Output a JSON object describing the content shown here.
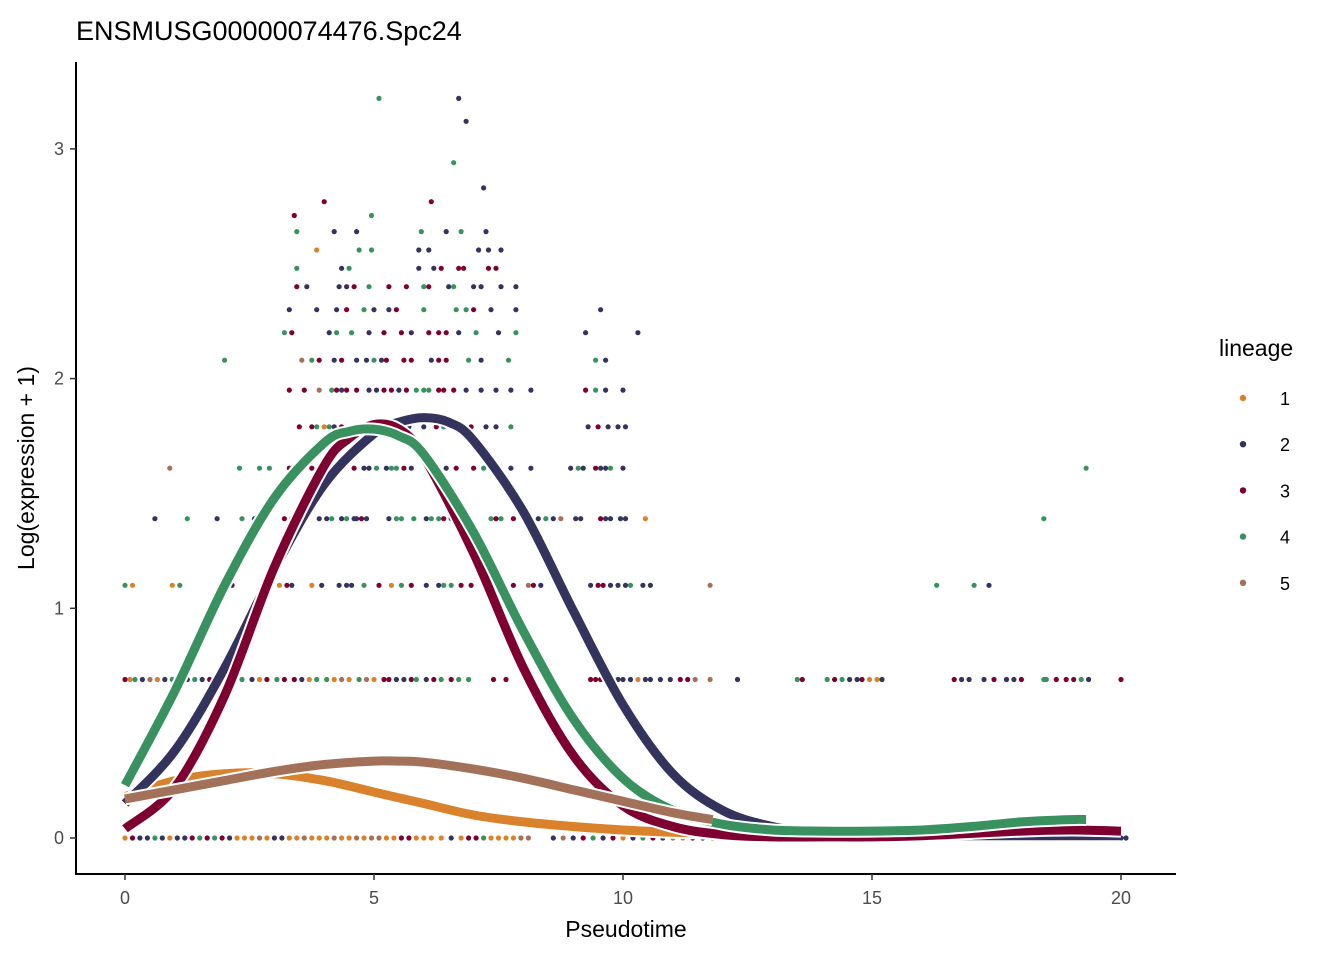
{
  "chart_data": {
    "type": "scatter",
    "title": "ENSMUSG00000074476.Spc24",
    "xlabel": "Pseudotime",
    "ylabel": "Log(expression + 1)",
    "xlim": [
      -1,
      21
    ],
    "ylim": [
      -0.16,
      3.35
    ],
    "xticks": [
      0,
      5,
      10,
      15,
      20
    ],
    "xtick_labels": [
      "0",
      "5",
      "10",
      "15",
      "20"
    ],
    "yticks": [
      0,
      1,
      2,
      3
    ],
    "ytick_labels": [
      "0",
      "1",
      "2",
      "3"
    ],
    "grid": false,
    "legend": {
      "title": "lineage",
      "placement": "right",
      "entries": [
        {
          "label": "1",
          "color": "#D9822B"
        },
        {
          "label": "2",
          "color": "#33335E"
        },
        {
          "label": "3",
          "color": "#7D0030"
        },
        {
          "label": "4",
          "color": "#3A9160"
        },
        {
          "label": "5",
          "color": "#A3715A"
        }
      ]
    },
    "points": [
      {
        "y": 3.22,
        "x": [
          5.1
        ],
        "lineage": [
          4
        ]
      },
      {
        "y": 3.22,
        "x": [
          6.7
        ],
        "lineage": [
          2
        ]
      },
      {
        "y": 3.12,
        "x": [
          6.85
        ],
        "lineage": [
          2
        ]
      },
      {
        "y": 2.94,
        "x": [
          6.6
        ],
        "lineage": [
          4
        ]
      },
      {
        "y": 2.83,
        "x": [
          7.2
        ],
        "lineage": [
          2
        ]
      },
      {
        "y": 2.77,
        "x": [
          4.0,
          6.15
        ],
        "lineage": [
          3,
          3
        ]
      },
      {
        "y": 2.71,
        "x": [
          3.4,
          4.95
        ],
        "lineage": [
          3,
          4
        ]
      },
      {
        "y": 2.64,
        "x": [
          3.45,
          4.2,
          4.65,
          5.95,
          6.45,
          6.75,
          7.25
        ],
        "lineage": [
          4,
          2,
          2,
          4,
          2,
          4,
          2
        ]
      },
      {
        "y": 2.56,
        "x": [
          3.85,
          4.7,
          4.95,
          5.9,
          6.1,
          7.1,
          7.3,
          7.55
        ],
        "lineage": [
          1,
          4,
          4,
          2,
          2,
          2,
          2,
          2
        ]
      },
      {
        "y": 2.48,
        "x": [
          3.45,
          4.35,
          4.5,
          5.9,
          6.2,
          6.35,
          6.7,
          6.8,
          7.3,
          7.45
        ],
        "lineage": [
          4,
          2,
          4,
          2,
          2,
          3,
          3,
          3,
          3,
          3
        ]
      },
      {
        "y": 2.4,
        "x": [
          3.45,
          3.65,
          4.3,
          4.45,
          4.6,
          4.9,
          5.3,
          5.65,
          6.0,
          6.1,
          6.5,
          6.6,
          7.0,
          7.15,
          7.55,
          7.85
        ],
        "lineage": [
          3,
          2,
          2,
          2,
          3,
          4,
          3,
          3,
          4,
          3,
          2,
          4,
          2,
          2,
          2,
          2
        ]
      },
      {
        "y": 2.3,
        "x": [
          3.3,
          3.85,
          4.25,
          4.45,
          4.8,
          5.0,
          5.3,
          5.45,
          6.0,
          6.65,
          6.85,
          7.0,
          7.35,
          7.85,
          9.55
        ],
        "lineage": [
          2,
          2,
          2,
          3,
          4,
          2,
          2,
          3,
          4,
          4,
          4,
          3,
          2,
          2,
          2
        ]
      },
      {
        "y": 2.2,
        "x": [
          3.2,
          3.35,
          4.1,
          4.25,
          4.55,
          4.9,
          5.2,
          5.55,
          5.75,
          6.1,
          6.3,
          6.45,
          6.7,
          7.05,
          7.5,
          7.85,
          9.25,
          10.3
        ],
        "lineage": [
          4,
          3,
          2,
          4,
          4,
          2,
          3,
          3,
          2,
          3,
          3,
          3,
          2,
          4,
          2,
          4,
          2,
          2
        ]
      },
      {
        "y": 2.08,
        "x": [
          2.0,
          3.55,
          3.75,
          3.9,
          4.2,
          4.35,
          4.65,
          4.85,
          5.0,
          5.15,
          5.25,
          5.6,
          5.75,
          6.15,
          6.3,
          6.45,
          6.9,
          7.15,
          7.7,
          9.45,
          9.65
        ],
        "lineage": [
          4,
          5,
          4,
          3,
          2,
          3,
          2,
          2,
          4,
          2,
          3,
          3,
          3,
          2,
          3,
          3,
          4,
          2,
          4,
          4,
          2
        ],
        "note": ""
      },
      {
        "y": 1.95,
        "x": [
          3.3,
          3.6,
          3.9,
          4.15,
          4.25,
          4.35,
          4.45,
          4.65,
          4.9,
          5.05,
          5.2,
          5.35,
          5.5,
          5.65,
          5.85,
          6.0,
          6.1,
          6.3,
          6.4,
          6.6,
          6.85,
          7.15,
          7.45,
          7.75,
          8.15,
          9.25,
          9.45,
          9.65,
          10.0
        ],
        "lineage": [
          3,
          3,
          5,
          4,
          3,
          2,
          3,
          3,
          2,
          2,
          3,
          3,
          2,
          3,
          4,
          4,
          4,
          3,
          3,
          3,
          2,
          2,
          2,
          2,
          2,
          3,
          4,
          2,
          2
        ]
      },
      {
        "y": 1.79,
        "x": [
          3.5,
          3.75,
          3.85,
          4.0,
          4.1,
          4.2,
          4.35,
          4.6,
          4.75,
          4.9,
          5.15,
          5.3,
          5.5,
          5.7,
          6.0,
          6.25,
          6.4,
          6.75,
          6.95,
          7.25,
          7.45,
          7.75,
          9.3,
          9.5,
          9.7,
          9.9,
          10.05
        ],
        "lineage": [
          3,
          3,
          4,
          1,
          4,
          2,
          3,
          3,
          3,
          2,
          2,
          3,
          4,
          2,
          2,
          3,
          4,
          4,
          3,
          2,
          2,
          4,
          2,
          3,
          2,
          2,
          2
        ]
      },
      {
        "y": 1.61,
        "x": [
          0.9,
          2.3,
          2.7,
          2.9,
          3.3,
          3.35,
          3.5,
          3.75,
          4.05,
          4.15,
          4.3,
          4.6,
          4.8,
          4.9,
          5.05,
          5.25,
          5.35,
          5.45,
          5.6,
          5.75,
          6.05,
          6.15,
          6.25,
          6.45,
          6.65,
          7.0,
          7.2,
          7.5,
          7.75,
          8.15,
          8.95,
          9.1,
          9.2,
          9.45,
          9.55,
          9.65,
          9.75,
          10.0,
          19.3
        ],
        "lineage": [
          5,
          4,
          4,
          4,
          3,
          4,
          4,
          3,
          2,
          3,
          3,
          3,
          2,
          2,
          4,
          2,
          4,
          4,
          3,
          2,
          4,
          2,
          2,
          2,
          3,
          3,
          4,
          2,
          2,
          2,
          2,
          4,
          2,
          3,
          2,
          2,
          4,
          2,
          4
        ]
      },
      {
        "y": 1.39,
        "x": [
          0.6,
          1.25,
          1.85,
          2.35,
          2.6,
          2.7,
          2.75,
          3.2,
          3.35,
          3.9,
          4.05,
          4.15,
          4.35,
          4.45,
          4.6,
          4.65,
          4.75,
          4.85,
          5.3,
          5.45,
          5.55,
          5.8,
          6.05,
          6.15,
          6.3,
          6.4,
          6.55,
          6.75,
          6.9,
          7.35,
          7.45,
          7.55,
          7.8,
          8.0,
          8.3,
          8.45,
          8.6,
          8.75,
          9.05,
          9.15,
          9.55,
          9.65,
          9.75,
          9.95,
          10.05,
          10.45,
          18.45
        ],
        "lineage": [
          2,
          4,
          2,
          4,
          2,
          4,
          2,
          3,
          4,
          2,
          2,
          4,
          2,
          4,
          2,
          2,
          3,
          2,
          2,
          4,
          4,
          4,
          2,
          4,
          4,
          3,
          2,
          2,
          2,
          4,
          3,
          4,
          3,
          2,
          2,
          4,
          2,
          5,
          2,
          2,
          3,
          2,
          2,
          2,
          2,
          1,
          4
        ]
      },
      {
        "y": 1.1,
        "x": [
          0.0,
          0.15,
          0.95,
          1.1,
          2.15,
          2.8,
          3.1,
          3.25,
          3.35,
          3.75,
          3.95,
          4.3,
          4.45,
          4.55,
          4.8,
          5.1,
          5.35,
          5.55,
          5.75,
          6.05,
          6.3,
          6.4,
          6.55,
          6.75,
          6.95,
          7.2,
          7.45,
          7.6,
          7.8,
          8.1,
          8.2,
          8.35,
          9.35,
          9.5,
          9.6,
          9.75,
          9.9,
          10.05,
          10.15,
          10.4,
          10.55,
          11.75,
          16.3,
          17.05,
          17.35
        ],
        "lineage": [
          4,
          1,
          1,
          4,
          2,
          2,
          1,
          3,
          2,
          1,
          2,
          2,
          2,
          2,
          4,
          3,
          1,
          4,
          3,
          2,
          2,
          4,
          4,
          3,
          3,
          4,
          4,
          3,
          3,
          5,
          3,
          2,
          2,
          3,
          3,
          2,
          2,
          2,
          4,
          2,
          2,
          5,
          4,
          4,
          2
        ]
      },
      {
        "y": 0.69,
        "x": [
          0.0,
          0.1,
          0.2,
          0.35,
          0.5,
          0.65,
          0.8,
          0.95,
          1.05,
          1.25,
          1.4,
          1.55,
          1.7,
          1.85,
          2.05,
          2.35,
          2.55,
          2.7,
          2.85,
          3.05,
          3.2,
          3.4,
          3.55,
          3.7,
          3.85,
          4.05,
          4.2,
          4.35,
          4.5,
          4.7,
          4.85,
          5.0,
          5.2,
          5.3,
          5.45,
          5.6,
          5.75,
          5.85,
          6.05,
          6.2,
          6.35,
          6.55,
          6.7,
          6.9,
          7.4,
          7.65,
          9.35,
          9.45,
          9.55,
          9.65,
          9.75,
          9.9,
          10.0,
          10.15,
          10.3,
          10.45,
          10.55,
          10.75,
          10.95,
          11.15,
          11.3,
          11.45,
          11.75,
          12.3,
          13.5,
          13.6,
          14.1,
          14.25,
          14.4,
          14.55,
          14.7,
          14.8,
          14.95,
          15.1,
          15.2,
          16.65,
          16.8,
          16.95,
          17.25,
          17.45,
          17.7,
          17.85,
          18.0,
          18.45,
          18.5,
          18.7,
          18.9,
          19.05,
          19.2,
          19.35,
          20.0
        ],
        "lineage": [
          3,
          1,
          4,
          2,
          5,
          1,
          2,
          4,
          1,
          2,
          4,
          2,
          3,
          1,
          1,
          4,
          2,
          1,
          3,
          4,
          3,
          3,
          2,
          1,
          4,
          4,
          1,
          5,
          1,
          4,
          5,
          1,
          3,
          3,
          2,
          2,
          3,
          4,
          2,
          3,
          4,
          3,
          4,
          4,
          3,
          3,
          3,
          3,
          3,
          2,
          4,
          2,
          2,
          2,
          1,
          2,
          2,
          2,
          2,
          3,
          3,
          5,
          5,
          2,
          4,
          3,
          4,
          3,
          4,
          2,
          2,
          3,
          1,
          1,
          2,
          3,
          2,
          2,
          2,
          3,
          2,
          2,
          3,
          4,
          4,
          3,
          3,
          3,
          4,
          2,
          3
        ]
      },
      {
        "y": 0.0,
        "x": [
          0.0,
          0.15,
          0.3,
          0.45,
          0.6,
          0.75,
          0.9,
          1.05,
          1.2,
          1.35,
          1.5,
          1.65,
          1.8,
          1.95,
          2.1,
          2.25,
          2.4,
          2.55,
          2.7,
          2.85,
          3.0,
          3.15,
          3.3,
          3.45,
          3.6,
          3.75,
          3.9,
          4.05,
          4.2,
          4.35,
          4.5,
          4.65,
          4.8,
          4.95,
          5.1,
          5.25,
          5.4,
          5.55,
          5.7,
          5.85,
          6.0,
          6.15,
          6.35,
          6.55,
          6.75,
          6.9,
          7.05,
          7.2,
          7.35,
          7.5,
          7.65,
          7.8,
          7.95,
          8.1,
          8.6,
          8.8,
          9.0,
          9.2,
          9.4,
          9.6,
          9.8,
          10.0,
          10.2,
          10.4,
          10.6,
          10.8,
          11.0,
          11.2,
          11.4,
          11.6,
          11.8,
          12.0,
          20.0,
          20.1
        ],
        "lineage": [
          1,
          3,
          2,
          2,
          4,
          2,
          1,
          2,
          2,
          3,
          4,
          3,
          4,
          3,
          2,
          1,
          1,
          1,
          5,
          1,
          2,
          2,
          1,
          1,
          5,
          1,
          1,
          1,
          5,
          1,
          1,
          5,
          1,
          5,
          5,
          1,
          1,
          3,
          3,
          1,
          1,
          1,
          1,
          2,
          1,
          3,
          3,
          4,
          1,
          1,
          1,
          1,
          5,
          5,
          2,
          5,
          2,
          3,
          4,
          2,
          3,
          1,
          2,
          4,
          3,
          2,
          5,
          1,
          3,
          2,
          1,
          3,
          2,
          2
        ]
      }
    ],
    "curves": [
      {
        "lineage": "1",
        "color": "#D9822B",
        "x": [
          0,
          1,
          2,
          3,
          4,
          5,
          6,
          7,
          8,
          9,
          10,
          11,
          12
        ],
        "y": [
          0.18,
          0.25,
          0.28,
          0.28,
          0.25,
          0.2,
          0.15,
          0.1,
          0.07,
          0.05,
          0.035,
          0.025,
          0.02
        ]
      },
      {
        "lineage": "2",
        "color": "#33335E",
        "x": [
          0,
          1,
          2,
          3,
          4,
          5,
          5.5,
          6,
          6.5,
          7,
          8,
          9,
          10,
          11,
          12,
          13,
          14,
          15,
          16,
          17,
          18,
          19,
          20
        ],
        "y": [
          0.15,
          0.38,
          0.74,
          1.17,
          1.54,
          1.76,
          1.81,
          1.83,
          1.81,
          1.73,
          1.42,
          0.99,
          0.58,
          0.28,
          0.12,
          0.05,
          0.02,
          0.01,
          0.01,
          0.01,
          0.01,
          0.01,
          0.01
        ]
      },
      {
        "lineage": "3",
        "color": "#7D0030",
        "x": [
          0,
          1,
          2,
          3,
          4,
          4.5,
          5,
          5.5,
          6,
          7,
          8,
          9,
          10,
          11,
          12,
          13,
          14,
          15,
          16,
          17,
          18,
          19,
          20
        ],
        "y": [
          0.04,
          0.22,
          0.62,
          1.18,
          1.62,
          1.74,
          1.8,
          1.78,
          1.66,
          1.24,
          0.74,
          0.36,
          0.14,
          0.05,
          0.015,
          0.005,
          0.005,
          0.005,
          0.01,
          0.02,
          0.03,
          0.035,
          0.03
        ]
      },
      {
        "lineage": "4",
        "color": "#3A9160",
        "x": [
          0,
          1,
          2,
          3,
          4,
          4.5,
          5,
          5.5,
          6,
          7,
          8,
          9,
          10,
          11,
          12,
          13,
          14,
          15,
          16,
          17,
          18,
          19,
          19.3
        ],
        "y": [
          0.23,
          0.64,
          1.1,
          1.48,
          1.72,
          1.77,
          1.78,
          1.75,
          1.67,
          1.33,
          0.9,
          0.52,
          0.26,
          0.12,
          0.06,
          0.035,
          0.03,
          0.03,
          0.035,
          0.05,
          0.07,
          0.08,
          0.08
        ]
      },
      {
        "lineage": "5",
        "color": "#A3715A",
        "x": [
          0,
          1,
          2,
          3,
          4,
          5,
          5.5,
          6,
          7,
          8,
          9,
          10,
          11,
          11.8
        ],
        "y": [
          0.17,
          0.21,
          0.25,
          0.29,
          0.32,
          0.335,
          0.335,
          0.33,
          0.3,
          0.26,
          0.21,
          0.16,
          0.11,
          0.08
        ]
      }
    ]
  }
}
